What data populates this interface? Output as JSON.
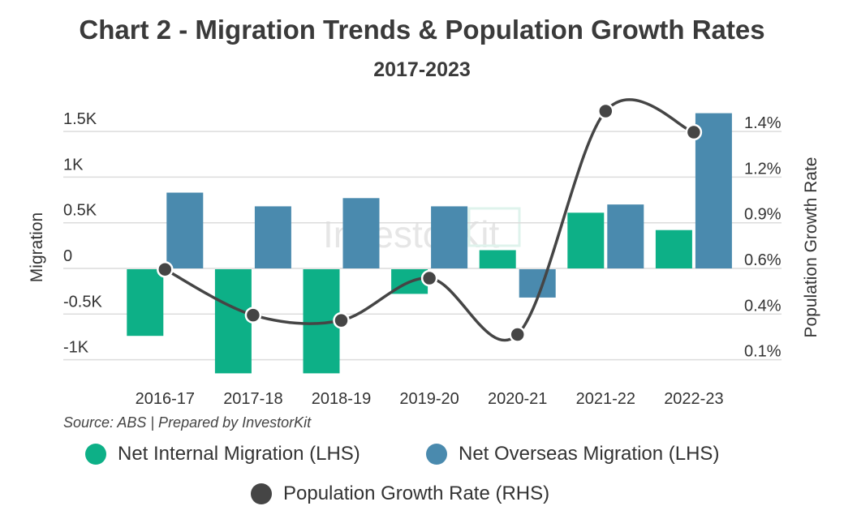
{
  "title": "Chart 2 - Migration Trends & Population Growth Rates",
  "subtitle": "2017-2023",
  "source": "Source: ABS | Prepared by InvestorKit",
  "watermark": "InvestorKit",
  "legend": [
    {
      "label": "Net Internal Migration (LHS)",
      "color": "#0db087"
    },
    {
      "label": "Net Overseas Migration (LHS)",
      "color": "#4a8aae"
    },
    {
      "label": "Population Growth Rate (RHS)",
      "color": "#454545"
    }
  ],
  "chart_data": {
    "type": "bar+line",
    "categories": [
      "2016-17",
      "2017-18",
      "2018-19",
      "2019-20",
      "2020-21",
      "2021-22",
      "2022-23"
    ],
    "series": [
      {
        "name": "Net Internal Migration (LHS)",
        "type": "bar",
        "axis": "left",
        "color": "#0db087",
        "values": [
          -730,
          -1140,
          -1140,
          -270,
          200,
          610,
          420
        ]
      },
      {
        "name": "Net Overseas Migration (LHS)",
        "type": "bar",
        "axis": "left",
        "color": "#4a8aae",
        "values": [
          830,
          680,
          770,
          680,
          -310,
          700,
          1700
        ]
      },
      {
        "name": "Population Growth Rate (RHS)",
        "type": "line",
        "axis": "right",
        "color": "#454545",
        "values": [
          0.64,
          0.38,
          0.35,
          0.59,
          0.27,
          1.54,
          1.42
        ]
      }
    ],
    "ylabel": "Migration",
    "y2label": "Population Growth Rate",
    "yticks": [
      {
        "v": 1500,
        "label": "1.5K"
      },
      {
        "v": 1000,
        "label": "1K"
      },
      {
        "v": 500,
        "label": "0.5K"
      },
      {
        "v": 0,
        "label": "0"
      },
      {
        "v": -500,
        "label": "-0.5K"
      },
      {
        "v": -1000,
        "label": "-1K"
      }
    ],
    "y2ticks": [
      "1.4%",
      "1.2%",
      "0.9%",
      "0.6%",
      "0.4%",
      "0.1%"
    ],
    "ylim": [
      -1150,
      1500
    ],
    "y2lim": [
      0.12,
      1.42
    ],
    "grid": true,
    "legend_position": "bottom"
  }
}
